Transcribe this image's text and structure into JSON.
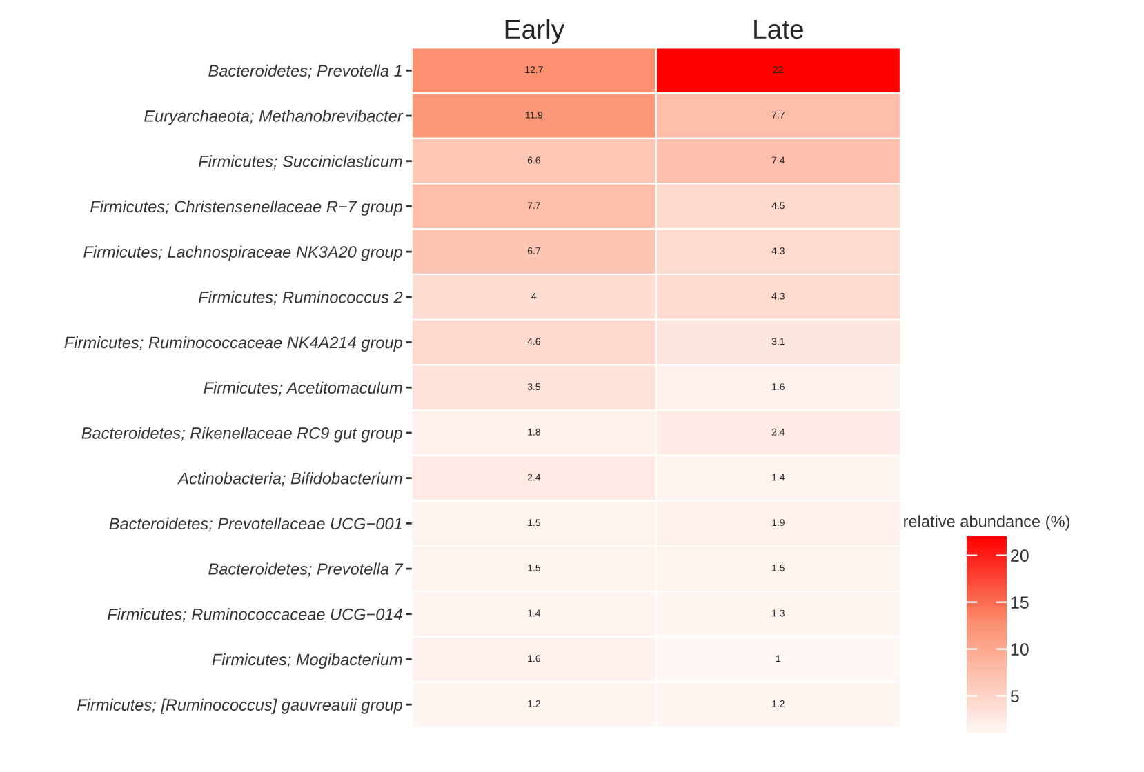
{
  "chart_data": {
    "type": "heatmap",
    "categories": [
      "Early",
      "Late"
    ],
    "y_categories": [
      "Bacteroidetes; Prevotella 1",
      "Euryarchaeota; Methanobrevibacter",
      "Firmicutes; Succiniclasticum",
      "Firmicutes; Christensenellaceae R−7 group",
      "Firmicutes; Lachnospiraceae NK3A20 group",
      "Firmicutes; Ruminococcus 2",
      "Firmicutes; Ruminococcaceae NK4A214 group",
      "Firmicutes; Acetitomaculum",
      "Bacteroidetes; Rikenellaceae RC9 gut group",
      "Actinobacteria; Bifidobacterium",
      "Bacteroidetes; Prevotellaceae UCG−001",
      "Bacteroidetes; Prevotella 7",
      "Firmicutes; Ruminococcaceae UCG−014",
      "Firmicutes; Mogibacterium",
      "Firmicutes; [Ruminococcus] gauvreauii group"
    ],
    "cells": [
      [
        12.7,
        22
      ],
      [
        11.9,
        7.7
      ],
      [
        6.6,
        7.4
      ],
      [
        7.7,
        4.5
      ],
      [
        6.7,
        4.3
      ],
      [
        4,
        4.3
      ],
      [
        4.6,
        3.1
      ],
      [
        3.5,
        1.6
      ],
      [
        1.8,
        2.4
      ],
      [
        2.4,
        1.4
      ],
      [
        1.5,
        1.9
      ],
      [
        1.5,
        1.5
      ],
      [
        1.4,
        1.3
      ],
      [
        1.6,
        1
      ],
      [
        1.2,
        1.2
      ]
    ],
    "data_labels": true,
    "clabel": "relative abundance (%)",
    "clim": [
      1,
      22
    ],
    "cticks": [
      5,
      10,
      15,
      20
    ]
  }
}
